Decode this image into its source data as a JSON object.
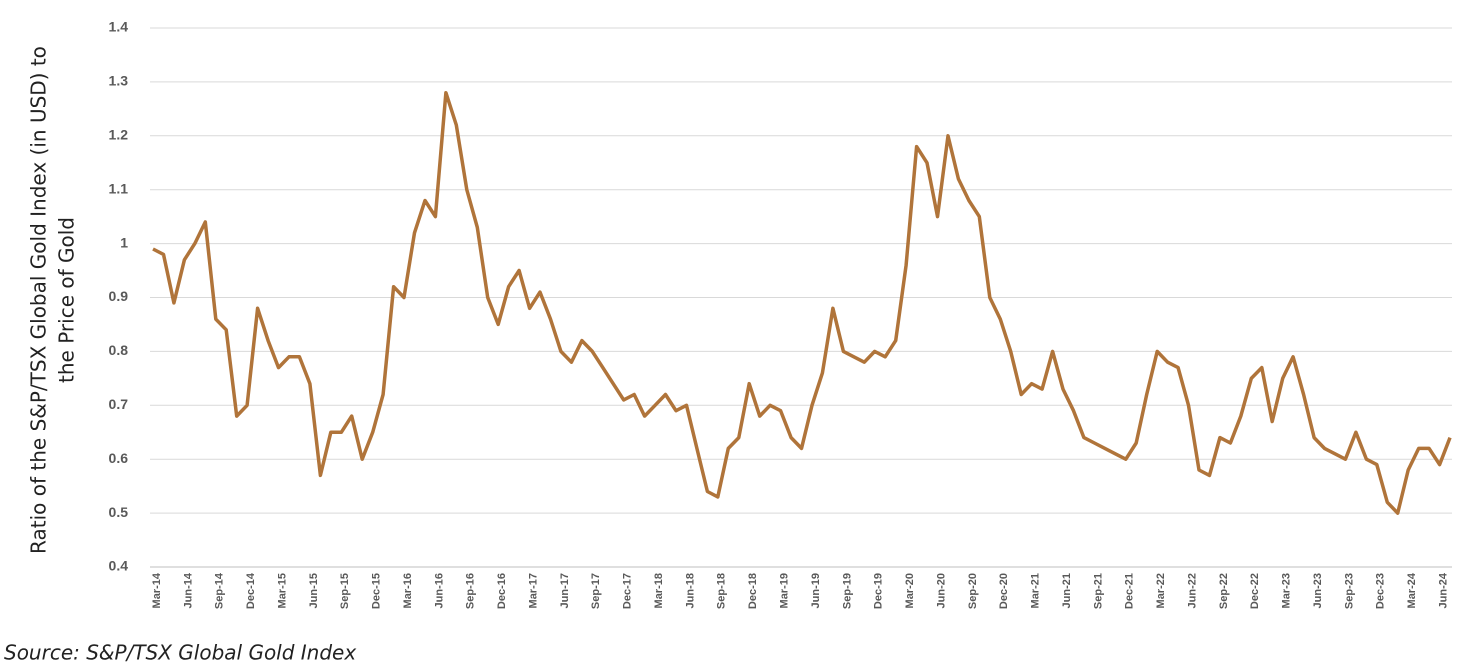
{
  "chart_data": {
    "type": "line",
    "ylabel": [
      "Ratio of the S&P/TSX Global Gold Index (in USD) to",
      "the Price of Gold"
    ],
    "source": "Source: S&P/TSX Global Gold Index",
    "categories": [
      "Mar-14",
      null,
      null,
      "Jun-14",
      null,
      null,
      "Sep-14",
      null,
      null,
      "Dec-14",
      null,
      null,
      "Mar-15",
      null,
      null,
      "Jun-15",
      null,
      null,
      "Sep-15",
      null,
      null,
      "Dec-15",
      null,
      null,
      "Mar-16",
      null,
      null,
      "Jun-16",
      null,
      null,
      "Sep-16",
      null,
      null,
      "Dec-16",
      null,
      null,
      "Mar-17",
      null,
      null,
      "Jun-17",
      null,
      null,
      "Sep-17",
      null,
      null,
      "Dec-17",
      null,
      null,
      "Mar-18",
      null,
      null,
      "Jun-18",
      null,
      null,
      "Sep-18",
      null,
      null,
      "Dec-18",
      null,
      null,
      "Mar-19",
      null,
      null,
      "Jun-19",
      null,
      null,
      "Sep-19",
      null,
      null,
      "Dec-19",
      null,
      null,
      "Mar-20",
      null,
      null,
      "Jun-20",
      null,
      null,
      "Sep-20",
      null,
      null,
      "Dec-20",
      null,
      null,
      "Mar-21",
      null,
      null,
      "Jun-21",
      null,
      null,
      "Sep-21",
      null,
      null,
      "Dec-21",
      null,
      null,
      "Mar-22",
      null,
      null,
      "Jun-22",
      null,
      null,
      "Sep-22",
      null,
      null,
      "Dec-22",
      null,
      null,
      "Mar-23",
      null,
      null,
      "Jun-23",
      null,
      null,
      "Sep-23",
      null,
      null,
      "Dec-23",
      null,
      null,
      "Mar-24",
      null,
      null,
      "Jun-24",
      null
    ],
    "series": [
      {
        "color": "#b0743a",
        "values": [
          0.99,
          0.98,
          0.89,
          0.97,
          1.0,
          1.04,
          0.86,
          0.84,
          0.68,
          0.7,
          0.88,
          0.82,
          0.77,
          0.79,
          0.79,
          0.74,
          0.57,
          0.65,
          0.65,
          0.68,
          0.6,
          0.65,
          0.72,
          0.92,
          0.9,
          1.02,
          1.08,
          1.05,
          1.28,
          1.22,
          1.1,
          1.03,
          0.9,
          0.85,
          0.92,
          0.95,
          0.88,
          0.91,
          0.86,
          0.8,
          0.78,
          0.82,
          0.8,
          0.77,
          0.74,
          0.71,
          0.72,
          0.68,
          0.7,
          0.72,
          0.69,
          0.7,
          0.62,
          0.54,
          0.53,
          0.62,
          0.64,
          0.74,
          0.68,
          0.7,
          0.69,
          0.64,
          0.62,
          0.7,
          0.76,
          0.88,
          0.8,
          0.79,
          0.78,
          0.8,
          0.79,
          0.82,
          0.96,
          1.18,
          1.15,
          1.05,
          1.2,
          1.12,
          1.08,
          1.05,
          0.9,
          0.86,
          0.8,
          0.72,
          0.74,
          0.73,
          0.8,
          0.73,
          0.69,
          0.64,
          0.63,
          0.62,
          0.61,
          0.6,
          0.63,
          0.72,
          0.8,
          0.78,
          0.77,
          0.7,
          0.58,
          0.57,
          0.64,
          0.63,
          0.68,
          0.75,
          0.77,
          0.67,
          0.75,
          0.79,
          0.72,
          0.64,
          0.62,
          0.61,
          0.6,
          0.65,
          0.6,
          0.59,
          0.52,
          0.5,
          0.58,
          0.62,
          0.62,
          0.59,
          0.64
        ]
      }
    ],
    "ylim": [
      0.4,
      1.4
    ],
    "yticks": [
      0.4,
      0.5,
      0.6,
      0.7,
      0.8,
      0.9,
      1,
      1.1,
      1.2,
      1.3,
      1.4
    ],
    "grid": true
  }
}
